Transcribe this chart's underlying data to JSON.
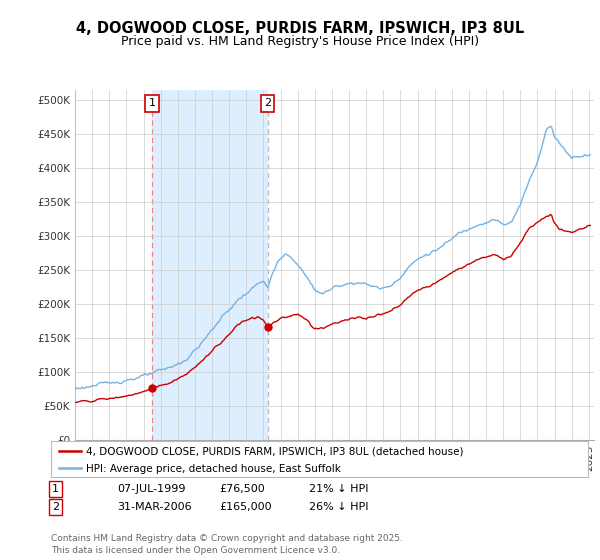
{
  "title": "4, DOGWOOD CLOSE, PURDIS FARM, IPSWICH, IP3 8UL",
  "subtitle": "Price paid vs. HM Land Registry's House Price Index (HPI)",
  "ylabel_ticks": [
    "£0",
    "£50K",
    "£100K",
    "£150K",
    "£200K",
    "£250K",
    "£300K",
    "£350K",
    "£400K",
    "£450K",
    "£500K"
  ],
  "ytick_vals": [
    0,
    50000,
    100000,
    150000,
    200000,
    250000,
    300000,
    350000,
    400000,
    450000,
    500000
  ],
  "ylim": [
    0,
    515000
  ],
  "sale1_date": "07-JUL-1999",
  "sale1_price": 76500,
  "sale1_pct": "21% ↓ HPI",
  "sale2_date": "31-MAR-2006",
  "sale2_price": 165000,
  "sale2_pct": "26% ↓ HPI",
  "sale1_x": 1999.51,
  "sale2_x": 2006.24,
  "legend_house": "4, DOGWOOD CLOSE, PURDIS FARM, IPSWICH, IP3 8UL (detached house)",
  "legend_hpi": "HPI: Average price, detached house, East Suffolk",
  "footer": "Contains HM Land Registry data © Crown copyright and database right 2025.\nThis data is licensed under the Open Government Licence v3.0.",
  "house_color": "#cc0000",
  "hpi_color": "#74b3e3",
  "shade_color": "#ddeeff",
  "background_color": "#ffffff",
  "plot_bg_color": "#ffffff",
  "grid_color": "#cccccc",
  "title_fontsize": 10.5,
  "subtitle_fontsize": 9
}
